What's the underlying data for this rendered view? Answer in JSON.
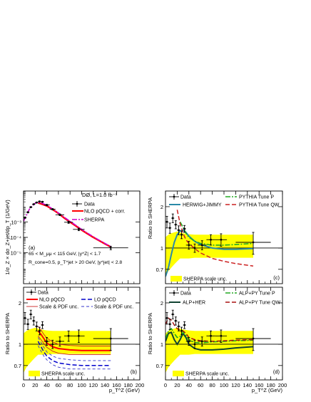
{
  "figure": {
    "panels": [
      {
        "id": "a",
        "panel_label": "(a)",
        "ylabel": "1/σ_Z × dσ_Z+jet/dp_T (1/GeV)",
        "header": "DØ, L=1.0 fb⁻¹",
        "legend": [
          {
            "label": "Data",
            "style": "data"
          },
          {
            "label": "NLO pQCD + corr.",
            "style": "line",
            "color": "#ff0000"
          },
          {
            "label": "SHERPA",
            "style": "dashdot",
            "color": "#cc00cc"
          }
        ],
        "cuts": [
          "65 < M_μμ < 115 GeV, |y^Z| < 1.7",
          "R_cone=0.5, p_T^jet > 20 GeV, |y^jet| < 2.8"
        ]
      },
      {
        "id": "b",
        "panel_label": "(b)",
        "ylabel": "Ratio to SHERPA",
        "legend": [
          {
            "label": "Data",
            "style": "data"
          },
          {
            "label": "LO pQCD",
            "style": "dashed",
            "color": "#0000cc"
          },
          {
            "label": "NLO pQCD",
            "style": "line",
            "color": "#ff0000"
          },
          {
            "label": "Scale & PDF unc.",
            "style": "dashed-thin",
            "color": "#3333cc"
          },
          {
            "label": "Scale & PDF unc.",
            "style": "line-thin",
            "color": "#cc2222"
          },
          {
            "label": "SHERPA scale unc.",
            "style": "box",
            "color": "#ffff00"
          }
        ]
      },
      {
        "id": "c",
        "panel_label": "(c)",
        "ylabel": "Ratio to SHERPA",
        "legend": [
          {
            "label": "Data",
            "style": "data"
          },
          {
            "label": "PYTHIA Tune P",
            "style": "dashdot",
            "color": "#22aa22"
          },
          {
            "label": "HERWIG+JIMMY",
            "style": "line",
            "color": "#2a8aa8"
          },
          {
            "label": "PYTHIA Tune QW",
            "style": "dashed",
            "color": "#cc2222"
          },
          {
            "label": "SHERPA scale unc.",
            "style": "box",
            "color": "#ffff00"
          }
        ]
      },
      {
        "id": "d",
        "panel_label": "(d)",
        "ylabel": "Ratio to SHERPA",
        "legend": [
          {
            "label": "Data",
            "style": "data"
          },
          {
            "label": "ALP+PY Tune P",
            "style": "dashdot",
            "color": "#22aa22"
          },
          {
            "label": "ALP+HER",
            "style": "line",
            "color": "#114433"
          },
          {
            "label": "ALP+PY Tune QW",
            "style": "dashed",
            "color": "#aa1111"
          },
          {
            "label": "SHERPA scale unc.",
            "style": "box",
            "color": "#ffff00"
          }
        ]
      }
    ],
    "xlabel": "p_T^Z (GeV)"
  },
  "chart_data": [
    {
      "type": "line",
      "panel": "a",
      "y_scale": "log",
      "ylim": [
        1e-07,
        0.1
      ],
      "xlim": [
        0,
        200
      ],
      "y_tick_labels": [
        "10⁻⁵",
        "10⁻⁴",
        "10⁻³"
      ],
      "y_tick_values": [
        1e-05,
        0.0001,
        0.001
      ],
      "x_tick_values": [
        0,
        20,
        40,
        60,
        80,
        100,
        120,
        140,
        160,
        180,
        200
      ],
      "data": {
        "x": [
          2.5,
          7.5,
          12.5,
          17.5,
          22.5,
          27.5,
          32.5,
          40,
          50,
          62.5,
          77.5,
          95,
          150
        ],
        "xerr": [
          2.5,
          2.5,
          2.5,
          2.5,
          2.5,
          2.5,
          2.5,
          5,
          5,
          7.5,
          7.5,
          10,
          30
        ],
        "y": [
          0.0019,
          0.0042,
          0.009,
          0.014,
          0.018,
          0.021,
          0.02,
          0.0125,
          0.0066,
          0.0029,
          0.00095,
          0.00033,
          2.1e-05
        ],
        "yerr_rel": [
          0.1,
          0.08,
          0.06,
          0.06,
          0.05,
          0.06,
          0.07,
          0.08,
          0.1,
          0.12,
          0.15,
          0.18,
          0.25
        ]
      },
      "series": [
        {
          "name": "NLO pQCD + corr.",
          "x": [
            25,
            30,
            40,
            50,
            60,
            70,
            80,
            90,
            100,
            110,
            120,
            130,
            140,
            150
          ],
          "y": [
            0.017,
            0.015,
            0.0108,
            0.0064,
            0.0036,
            0.0018,
            0.00098,
            0.00055,
            0.0003,
            0.00017,
            0.0001,
            6.2e-05,
            3.8e-05,
            2.4e-05
          ]
        },
        {
          "name": "SHERPA",
          "x": [
            0,
            5,
            10,
            15,
            20,
            25,
            30,
            40,
            50,
            60,
            70,
            80,
            90,
            100,
            110,
            120,
            130,
            140,
            150
          ],
          "y": [
            0.0011,
            0.0027,
            0.0065,
            0.0115,
            0.016,
            0.018,
            0.0172,
            0.0121,
            0.0068,
            0.0038,
            0.002,
            0.0011,
            0.0006,
            0.00033,
            0.000185,
            0.00011,
            6.6e-05,
            4.1e-05,
            2.5e-05
          ]
        }
      ]
    },
    {
      "type": "line",
      "panel": "b",
      "y_scale": "log",
      "ylim": [
        0.55,
        2.6
      ],
      "xlim": [
        0,
        200
      ],
      "y_tick_labels": [
        "0.7",
        "1",
        "2"
      ],
      "y_tick_values": [
        0.7,
        1,
        2
      ],
      "x_tick_labels": [
        "0",
        "20",
        "40",
        "60",
        "80",
        "100",
        "120",
        "140",
        "160",
        "180",
        "200"
      ],
      "x_tick_values": [
        0,
        20,
        40,
        60,
        80,
        100,
        120,
        140,
        160,
        180,
        200
      ],
      "data": {
        "x": [
          2.5,
          7.5,
          12.5,
          17.5,
          22.5,
          27.5,
          32.5,
          40,
          50,
          62.5,
          77.5,
          95,
          150
        ],
        "xerr": [
          2.5,
          2.5,
          2.5,
          2.5,
          2.5,
          2.5,
          2.5,
          5,
          5,
          7.5,
          7.5,
          10,
          30
        ],
        "y": [
          1.55,
          1.4,
          1.65,
          1.48,
          1.35,
          1.25,
          1.38,
          1.05,
          1.0,
          1.05,
          1.15,
          1.15,
          1.1
        ],
        "yerr": [
          0.15,
          0.12,
          0.12,
          0.1,
          0.1,
          0.08,
          0.08,
          0.07,
          0.07,
          0.08,
          0.1,
          0.12,
          0.2
        ]
      },
      "band": {
        "name": "SHERPA scale unc.",
        "x": [
          0,
          5,
          10,
          15,
          20,
          25,
          30,
          40,
          50,
          60,
          80,
          100,
          120,
          150
        ],
        "lo": [
          0.62,
          0.68,
          0.72,
          0.76,
          0.8,
          0.84,
          0.84,
          0.84,
          0.85,
          0.85,
          0.85,
          0.85,
          0.85,
          0.85
        ],
        "hi": [
          1.2,
          1.25,
          1.28,
          1.3,
          1.32,
          1.3,
          1.28,
          1.26,
          1.25,
          1.25,
          1.25,
          1.25,
          1.25,
          1.25
        ]
      },
      "series": [
        {
          "name": "NLO pQCD",
          "x": [
            25,
            30,
            35,
            40,
            50,
            60,
            80,
            100,
            120,
            150
          ],
          "y": [
            1.25,
            1.18,
            1.1,
            1.02,
            0.96,
            0.93,
            0.91,
            0.9,
            0.9,
            0.9
          ]
        },
        {
          "name": "Scale & PDF unc.",
          "x": [
            25,
            30,
            35,
            40,
            50,
            60,
            80,
            100,
            120,
            150
          ],
          "y": [
            1.35,
            1.27,
            1.18,
            1.11,
            1.04,
            1.0,
            0.98,
            0.97,
            0.97,
            0.97
          ]
        },
        {
          "name": "Scale & PDF unc.",
          "x": [
            25,
            30,
            35,
            40,
            50,
            60,
            80,
            100,
            120,
            150
          ],
          "y": [
            1.15,
            1.08,
            1.01,
            0.95,
            0.89,
            0.86,
            0.84,
            0.84,
            0.84,
            0.84
          ]
        },
        {
          "name": "LO pQCD",
          "x": [
            25,
            30,
            35,
            40,
            50,
            60,
            80,
            100,
            120,
            150
          ],
          "y": [
            1.05,
            0.96,
            0.88,
            0.82,
            0.76,
            0.73,
            0.71,
            0.7,
            0.7,
            0.7
          ]
        },
        {
          "name": "Scale & PDF unc.",
          "x": [
            25,
            30,
            35,
            40,
            50,
            60,
            80,
            100,
            120,
            150
          ],
          "y": [
            1.12,
            1.03,
            0.95,
            0.88,
            0.82,
            0.79,
            0.77,
            0.76,
            0.76,
            0.76
          ]
        },
        {
          "name": "Scale & PDF unc.",
          "x": [
            25,
            30,
            35,
            40,
            50,
            60,
            80,
            100,
            120,
            150
          ],
          "y": [
            0.98,
            0.89,
            0.82,
            0.77,
            0.71,
            0.68,
            0.66,
            0.66,
            0.66,
            0.66
          ]
        }
      ]
    },
    {
      "type": "line",
      "panel": "c",
      "y_scale": "log",
      "ylim": [
        0.55,
        2.6
      ],
      "xlim": [
        0,
        200
      ],
      "y_tick_labels": [
        "0.7",
        "1",
        "2"
      ],
      "y_tick_values": [
        0.7,
        1,
        2
      ],
      "x_tick_values": [
        0,
        20,
        40,
        60,
        80,
        100,
        120,
        140,
        160,
        180,
        200
      ],
      "data": {
        "x": [
          2.5,
          7.5,
          12.5,
          17.5,
          22.5,
          27.5,
          32.5,
          40,
          50,
          62.5,
          77.5,
          95,
          150
        ],
        "xerr": [
          2.5,
          2.5,
          2.5,
          2.5,
          2.5,
          2.5,
          2.5,
          5,
          5,
          7.5,
          7.5,
          10,
          30
        ],
        "y": [
          1.55,
          1.4,
          1.65,
          1.48,
          1.35,
          1.25,
          1.38,
          1.05,
          1.0,
          1.05,
          1.15,
          1.15,
          1.1
        ],
        "yerr": [
          0.15,
          0.12,
          0.12,
          0.1,
          0.1,
          0.08,
          0.08,
          0.07,
          0.07,
          0.08,
          0.1,
          0.12,
          0.2
        ]
      },
      "band": {
        "name": "SHERPA scale unc.",
        "x": [
          0,
          5,
          10,
          15,
          20,
          25,
          30,
          40,
          50,
          60,
          80,
          100,
          120,
          150
        ],
        "lo": [
          0.62,
          0.68,
          0.72,
          0.76,
          0.8,
          0.84,
          0.84,
          0.84,
          0.85,
          0.85,
          0.85,
          0.85,
          0.85,
          0.85
        ],
        "hi": [
          1.2,
          1.25,
          1.28,
          1.3,
          1.32,
          1.3,
          1.28,
          1.26,
          1.25,
          1.25,
          1.25,
          1.25,
          1.25,
          1.25
        ]
      },
      "series": [
        {
          "name": "HERWIG+JIMMY",
          "x": [
            0,
            5,
            10,
            15,
            20,
            25,
            30,
            35,
            40,
            50,
            60,
            80,
            100,
            120,
            150
          ],
          "y": [
            0.62,
            0.72,
            0.9,
            1.1,
            1.25,
            1.33,
            1.35,
            1.3,
            1.22,
            1.12,
            1.06,
            1.0,
            0.98,
            0.98,
            0.99
          ]
        },
        {
          "name": "PYTHIA Tune P",
          "x": [
            25,
            30,
            35,
            40,
            50,
            60,
            80,
            100,
            120,
            150
          ],
          "y": [
            1.55,
            1.42,
            1.28,
            1.2,
            1.12,
            1.08,
            1.05,
            1.05,
            1.06,
            1.08
          ]
        },
        {
          "name": "PYTHIA Tune QW",
          "x": [
            20,
            25,
            30,
            35,
            40,
            50,
            60,
            80,
            100,
            120,
            150
          ],
          "y": [
            1.9,
            1.5,
            1.28,
            1.15,
            1.08,
            0.99,
            0.92,
            0.84,
            0.8,
            0.77,
            0.74
          ]
        }
      ]
    },
    {
      "type": "line",
      "panel": "d",
      "y_scale": "log",
      "ylim": [
        0.55,
        2.6
      ],
      "xlim": [
        0,
        200
      ],
      "y_tick_labels": [
        "0.7",
        "1",
        "2"
      ],
      "y_tick_values": [
        0.7,
        1,
        2
      ],
      "x_tick_labels": [
        "0",
        "20",
        "40",
        "60",
        "80",
        "100",
        "120",
        "140",
        "160",
        "180",
        "200"
      ],
      "x_tick_values": [
        0,
        20,
        40,
        60,
        80,
        100,
        120,
        140,
        160,
        180,
        200
      ],
      "data": {
        "x": [
          2.5,
          7.5,
          12.5,
          17.5,
          22.5,
          27.5,
          32.5,
          40,
          50,
          62.5,
          77.5,
          95,
          150
        ],
        "xerr": [
          2.5,
          2.5,
          2.5,
          2.5,
          2.5,
          2.5,
          2.5,
          5,
          5,
          7.5,
          7.5,
          10,
          30
        ],
        "y": [
          1.55,
          1.4,
          1.65,
          1.48,
          1.35,
          1.25,
          1.38,
          1.05,
          1.0,
          1.05,
          1.15,
          1.15,
          1.1
        ],
        "yerr": [
          0.15,
          0.12,
          0.12,
          0.1,
          0.1,
          0.08,
          0.08,
          0.07,
          0.07,
          0.08,
          0.1,
          0.12,
          0.2
        ]
      },
      "band": {
        "name": "SHERPA scale unc.",
        "x": [
          0,
          5,
          10,
          15,
          20,
          25,
          30,
          40,
          50,
          60,
          80,
          100,
          120,
          150
        ],
        "lo": [
          0.62,
          0.68,
          0.72,
          0.76,
          0.8,
          0.84,
          0.84,
          0.84,
          0.85,
          0.85,
          0.85,
          0.85,
          0.85,
          0.85
        ],
        "hi": [
          1.2,
          1.25,
          1.28,
          1.3,
          1.32,
          1.3,
          1.28,
          1.26,
          1.25,
          1.25,
          1.25,
          1.25,
          1.25,
          1.25
        ]
      },
      "series": [
        {
          "name": "ALP+HER",
          "x": [
            0,
            5,
            10,
            15,
            20,
            25,
            30,
            35,
            40,
            50,
            60,
            80,
            100,
            120,
            150
          ],
          "y": [
            1.05,
            1.2,
            1.22,
            1.08,
            1.0,
            1.08,
            1.2,
            1.12,
            1.0,
            0.93,
            0.91,
            0.91,
            0.92,
            0.94,
            0.96
          ]
        },
        {
          "name": "ALP+PY Tune P",
          "x": [
            0,
            5,
            10,
            15,
            20,
            25,
            30,
            35,
            40,
            50,
            60,
            80,
            100,
            120,
            150
          ],
          "y": [
            1.1,
            1.25,
            1.3,
            1.2,
            1.12,
            1.14,
            1.22,
            1.16,
            1.08,
            1.03,
            1.02,
            1.04,
            1.05,
            1.06,
            1.07
          ]
        },
        {
          "name": "ALP+PY Tune QW",
          "x": [
            0,
            5,
            10,
            15,
            20,
            25,
            30,
            35,
            40,
            50,
            60,
            80,
            100,
            120,
            150
          ],
          "y": [
            1.4,
            1.55,
            1.5,
            1.38,
            1.3,
            1.26,
            1.25,
            1.2,
            1.12,
            1.08,
            1.06,
            1.05,
            1.06,
            1.07,
            1.08
          ]
        }
      ]
    }
  ]
}
